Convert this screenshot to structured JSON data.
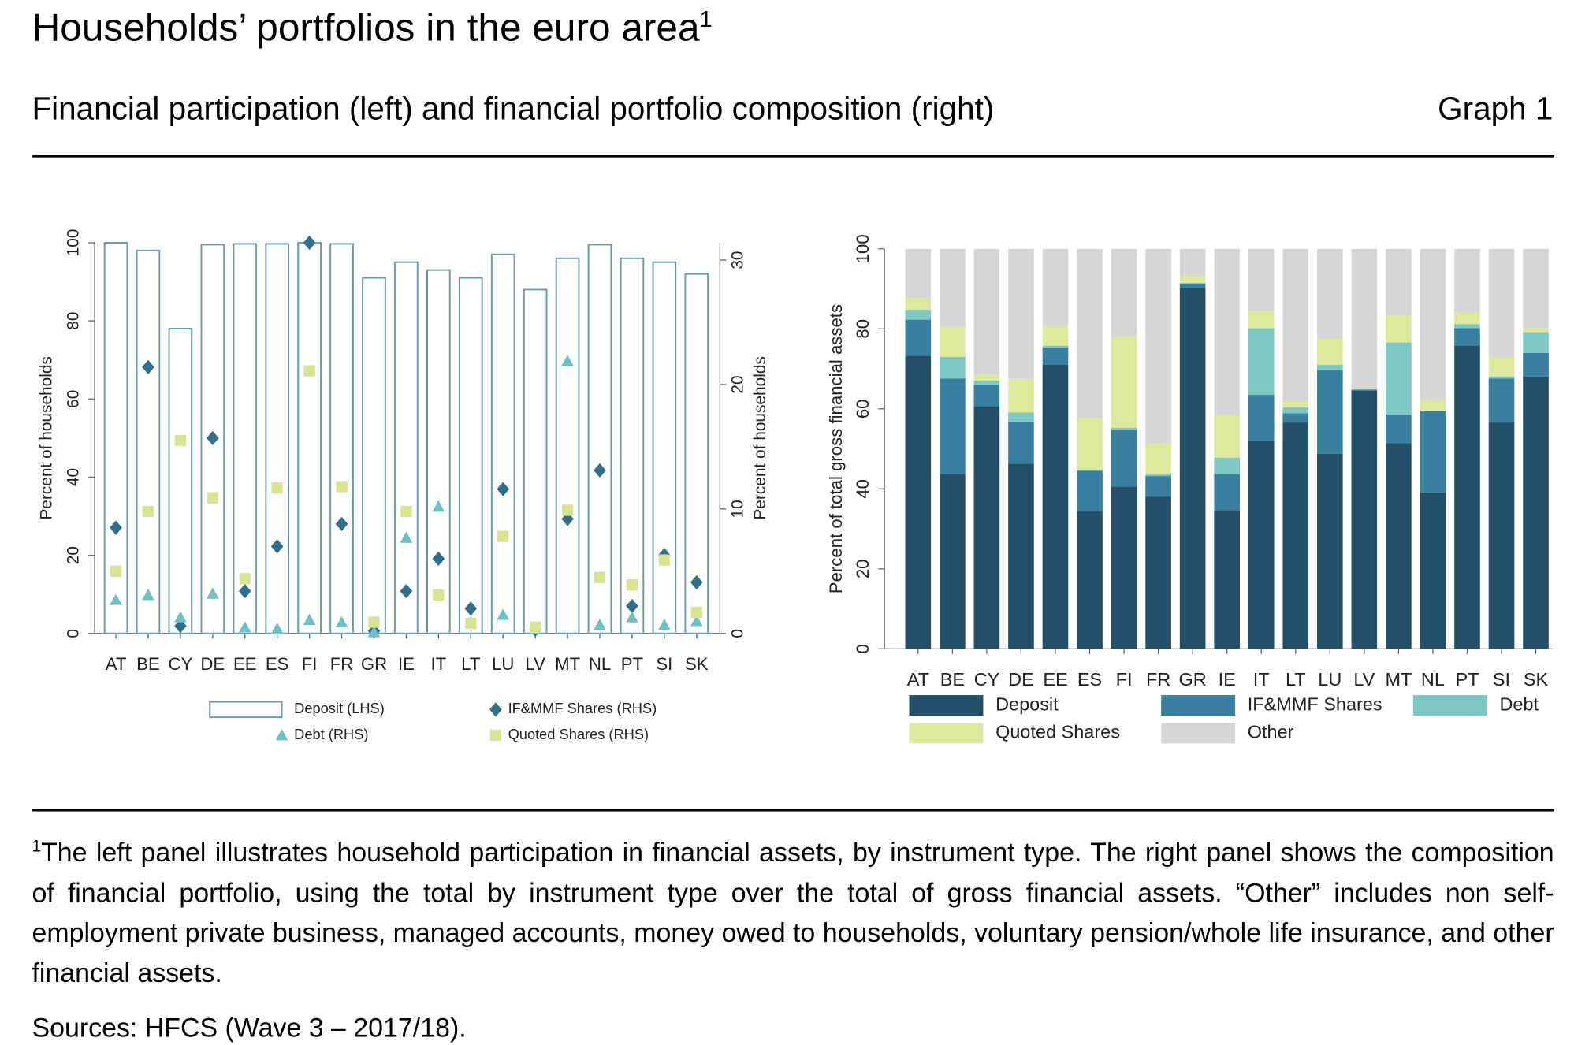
{
  "header": {
    "title": "Households’ portfolios in the euro area",
    "title_note": "1",
    "subtitle": "Financial participation (left) and financial portfolio composition (right)",
    "graph_label": "Graph 1"
  },
  "chart_data": [
    {
      "type": "bar",
      "categories": [
        "AT",
        "BE",
        "CY",
        "DE",
        "EE",
        "ES",
        "FI",
        "FR",
        "GR",
        "IE",
        "IT",
        "LT",
        "LU",
        "LV",
        "MT",
        "NL",
        "PT",
        "SI",
        "SK"
      ],
      "ylabel": "Percent of households",
      "y2label": "Percent of households",
      "ylim": [
        0,
        100
      ],
      "yticks": [
        0,
        20,
        40,
        60,
        80,
        100
      ],
      "y2lim": [
        0,
        31.4
      ],
      "y2ticks": [
        0,
        10,
        20,
        30
      ],
      "series": [
        {
          "name": "Deposit (LHS)",
          "marker": "bar",
          "color": "#6a9bb5",
          "values": [
            100,
            98,
            78,
            99.5,
            99.7,
            99.7,
            100,
            99.7,
            91,
            95,
            93,
            91,
            97,
            88,
            96,
            99.5,
            96,
            95,
            92
          ]
        },
        {
          "name": "IF&MMF Shares (RHS)",
          "marker": "diamond",
          "axis": "y2",
          "color": "#2e6f8e",
          "values": [
            8.5,
            21.4,
            0.6,
            15.7,
            3.4,
            7.0,
            31.4,
            8.8,
            0.2,
            3.4,
            6.0,
            2.0,
            11.6,
            0.3,
            9.2,
            13.1,
            2.2,
            6.3,
            4.1
          ]
        },
        {
          "name": "Debt (RHS)",
          "marker": "triangle",
          "axis": "y2",
          "color": "#6cc0c6",
          "values": [
            2.7,
            3.1,
            1.3,
            3.2,
            0.5,
            0.4,
            1.1,
            0.9,
            0.1,
            7.7,
            10.2,
            0.9,
            1.5,
            0.4,
            21.9,
            0.7,
            1.3,
            0.7,
            1.0
          ]
        },
        {
          "name": "Quoted Shares (RHS)",
          "marker": "square",
          "axis": "y2",
          "color": "#d9e493",
          "values": [
            5.0,
            9.8,
            15.5,
            10.9,
            4.4,
            11.7,
            21.1,
            11.8,
            0.9,
            9.8,
            3.1,
            0.8,
            7.8,
            0.5,
            9.9,
            4.5,
            3.9,
            5.9,
            1.7
          ]
        }
      ]
    },
    {
      "type": "stacked_bar",
      "categories": [
        "AT",
        "BE",
        "CY",
        "DE",
        "EE",
        "ES",
        "FI",
        "FR",
        "GR",
        "IE",
        "IT",
        "LT",
        "LU",
        "LV",
        "MT",
        "NL",
        "PT",
        "SI",
        "SK"
      ],
      "ylabel": "Percent of total gross financial assets",
      "ylim": [
        0,
        100
      ],
      "yticks": [
        0,
        20,
        40,
        60,
        80,
        100
      ],
      "series": [
        {
          "name": "Deposit",
          "color": "#234f68",
          "values": [
            73.3,
            43.7,
            60.7,
            46.3,
            71.0,
            34.4,
            40.6,
            38.0,
            90.2,
            34.7,
            51.9,
            56.6,
            48.8,
            64.5,
            51.4,
            39.1,
            75.8,
            56.6,
            68.1
          ]
        },
        {
          "name": "IF&MMF Shares",
          "color": "#3a7f9f",
          "values": [
            9.0,
            23.9,
            5.4,
            10.5,
            4.3,
            10.1,
            14.2,
            5.2,
            1.1,
            9.0,
            11.6,
            2.3,
            20.9,
            0.3,
            7.2,
            20.3,
            4.4,
            11.0,
            5.9
          ]
        },
        {
          "name": "Debt",
          "color": "#7dc8c3",
          "values": [
            2.5,
            5.4,
            1.0,
            2.3,
            0.5,
            0.2,
            0.5,
            0.5,
            0.2,
            4.1,
            16.7,
            1.5,
            1.3,
            0.1,
            18.0,
            0.2,
            1.0,
            0.5,
            5.2
          ]
        },
        {
          "name": "Quoted Shares",
          "color": "#dde89c",
          "values": [
            2.9,
            7.5,
            1.5,
            8.3,
            4.9,
            13.1,
            22.8,
            7.7,
            1.8,
            10.6,
            4.4,
            1.6,
            6.6,
            0.1,
            6.7,
            2.6,
            2.9,
            4.9,
            1.0
          ]
        },
        {
          "name": "Other",
          "color": "#d6d6d6",
          "values": [
            12.3,
            19.5,
            31.4,
            32.6,
            19.3,
            42.2,
            21.9,
            48.6,
            6.7,
            41.6,
            15.4,
            38.0,
            22.4,
            35.0,
            16.7,
            37.8,
            15.9,
            27.0,
            19.8
          ]
        }
      ]
    }
  ],
  "footnote": {
    "marker": "1",
    "text": "The left panel illustrates household participation in financial assets, by instrument type. The right panel shows the composition of financial portfolio, using the total by instrument type over the total of gross financial assets. “Other” includes non self-employment private business, managed accounts, money owed to households, voluntary pension/whole life insurance, and other financial assets."
  },
  "sources": "Sources: HFCS (Wave 3 – 2017/18)."
}
